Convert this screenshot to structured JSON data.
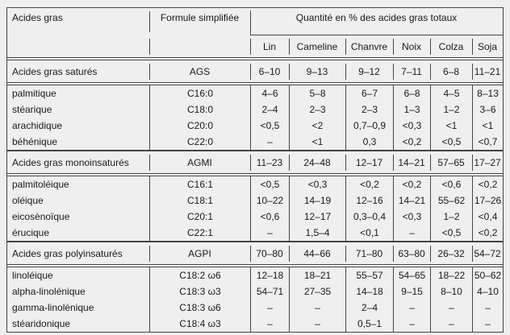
{
  "header": {
    "col1": "Acides gras",
    "col2": "Formule simplifiée",
    "group": "Quantité en % des acides gras totaux",
    "oils": [
      "Lin",
      "Cameline",
      "Chanvre",
      "Noix",
      "Colza",
      "Soja"
    ]
  },
  "sections": [
    {
      "summary": {
        "name": "Acides gras saturés",
        "formula": "AGS",
        "values": [
          "6–10",
          "9–13",
          "9–12",
          "7–11",
          "6–8",
          "11–21"
        ]
      },
      "rows": [
        {
          "name": "palmitique",
          "formula": "C16:0",
          "values": [
            "4–6",
            "5–8",
            "6–7",
            "6–8",
            "4–5",
            "8–13"
          ]
        },
        {
          "name": "stéarique",
          "formula": "C18:0",
          "values": [
            "2–4",
            "2–3",
            "2–3",
            "1–3",
            "1–2",
            "3–6"
          ]
        },
        {
          "name": "arachidique",
          "formula": "C20:0",
          "values": [
            "<0,5",
            "<2",
            "0,7–0,9",
            "<0,3",
            "<1",
            "<1"
          ]
        },
        {
          "name": "béhénique",
          "formula": "C22:0",
          "values": [
            "–",
            "<1",
            "0,3",
            "<0,2",
            "<0,5",
            "<0,7"
          ]
        }
      ]
    },
    {
      "summary": {
        "name": "Acides gras monoinsaturés",
        "formula": "AGMI",
        "values": [
          "11–23",
          "24–48",
          "12–17",
          "14–21",
          "57–65",
          "17–27"
        ]
      },
      "rows": [
        {
          "name": "palmitoléique",
          "formula": "C16:1",
          "values": [
            "<0,5",
            "<0,3",
            "<0,2",
            "<0,2",
            "<0,6",
            "<0,2"
          ]
        },
        {
          "name": "oléique",
          "formula": "C18:1",
          "values": [
            "10–22",
            "14–19",
            "12–16",
            "14–21",
            "55–62",
            "17–26"
          ]
        },
        {
          "name": "eicosènoïque",
          "formula": "C20:1",
          "values": [
            "<0,6",
            "12–17",
            "0,3–0,4",
            "<0,3",
            "1–2",
            "<0,4"
          ]
        },
        {
          "name": "érucique",
          "formula": "C22:1",
          "values": [
            "–",
            "1,5–4",
            "<0,1",
            "–",
            "<0,5",
            "<0,2"
          ]
        }
      ]
    },
    {
      "summary": {
        "name": "Acides gras polyinsaturés",
        "formula": "AGPI",
        "values": [
          "70–80",
          "44–66",
          "71–80",
          "63–80",
          "26–32",
          "54–72"
        ]
      },
      "rows": [
        {
          "name": "linoléique",
          "formula": "C18:2 ω6",
          "values": [
            "12–18",
            "18–21",
            "55–57",
            "54–65",
            "18–22",
            "50–62"
          ]
        },
        {
          "name": "alpha-linolénique",
          "formula": "C18:3 ω3",
          "values": [
            "54–71",
            "27–35",
            "14–18",
            "9–15",
            "8–10",
            "4–10"
          ]
        },
        {
          "name": "gamma-linolénique",
          "formula": "C18:3 ω6",
          "values": [
            "–",
            "–",
            "2–4",
            "–",
            "–",
            "–"
          ]
        },
        {
          "name": "stéaridonique",
          "formula": "C18:4 ω3",
          "values": [
            "–",
            "–",
            "0,5–1",
            "–",
            "–",
            "–"
          ]
        }
      ]
    }
  ],
  "colors": {
    "background": "#efefef",
    "line": "#454545",
    "text": "#1a1a1a"
  }
}
